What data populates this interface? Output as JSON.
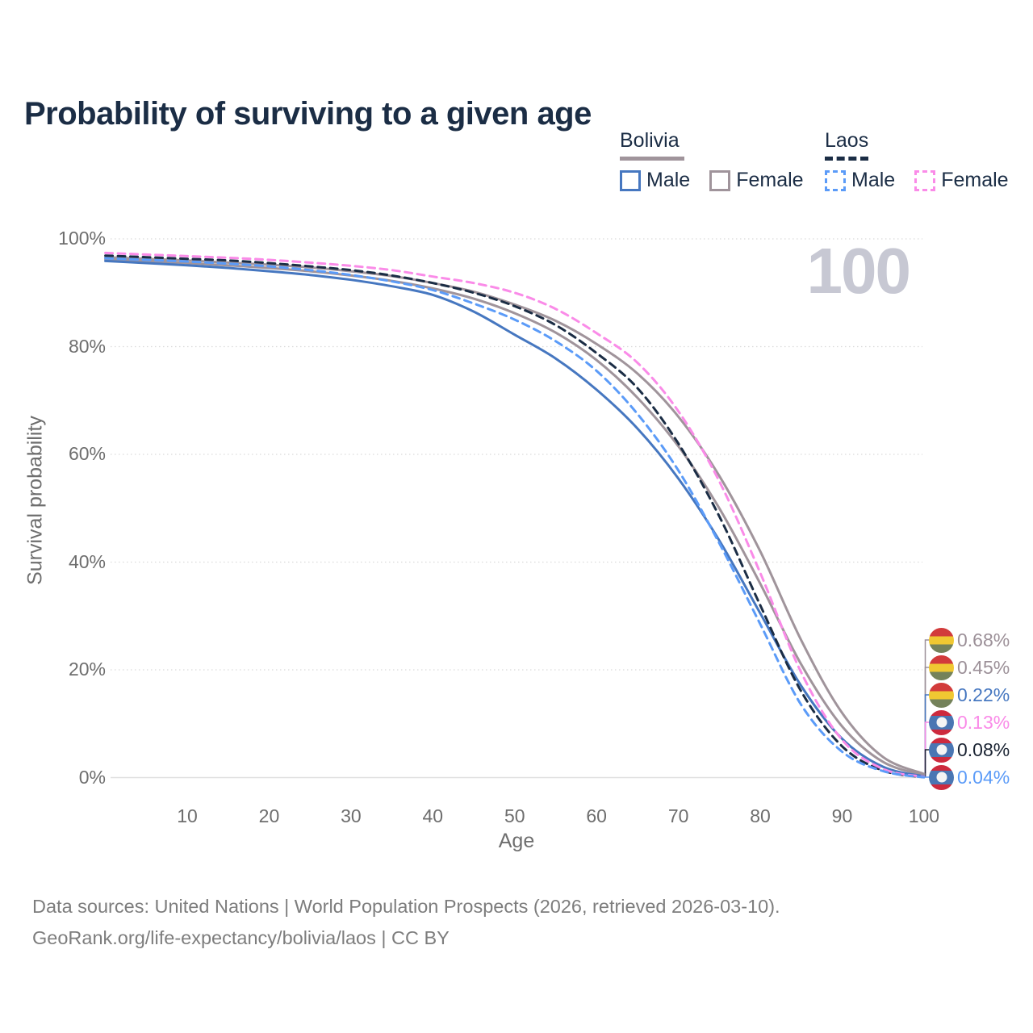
{
  "title": "Probability of surviving to a given age",
  "watermark_age": "100",
  "legend": {
    "groups": [
      {
        "name": "Bolivia",
        "rule_style": "solid",
        "rule_color": "#a0949b",
        "items": [
          {
            "label": "Male",
            "color": "#4677c0",
            "dashed": false
          },
          {
            "label": "Female",
            "color": "#a0949b",
            "dashed": false
          }
        ]
      },
      {
        "name": "Laos",
        "rule_style": "dashed",
        "rule_color": "#1b2d45",
        "items": [
          {
            "label": "Male",
            "color": "#5b9bf8",
            "dashed": true
          },
          {
            "label": "Female",
            "color": "#fa8be8",
            "dashed": true
          }
        ]
      }
    ]
  },
  "axes": {
    "y_title": "Survival probability",
    "x_title": "Age",
    "y_ticks": [
      {
        "label": "100%",
        "value": 100
      },
      {
        "label": "80%",
        "value": 80
      },
      {
        "label": "60%",
        "value": 60
      },
      {
        "label": "40%",
        "value": 40
      },
      {
        "label": "20%",
        "value": 20
      },
      {
        "label": "0%",
        "value": 0
      }
    ],
    "x_ticks": [
      {
        "label": "10",
        "value": 10
      },
      {
        "label": "20",
        "value": 20
      },
      {
        "label": "30",
        "value": 30
      },
      {
        "label": "40",
        "value": 40
      },
      {
        "label": "50",
        "value": 50
      },
      {
        "label": "60",
        "value": 60
      },
      {
        "label": "70",
        "value": 70
      },
      {
        "label": "80",
        "value": 80
      },
      {
        "label": "90",
        "value": 90
      },
      {
        "label": "100",
        "value": 100
      }
    ]
  },
  "end_labels": [
    {
      "text": "0.68%",
      "color": "#9c9098",
      "flag": "bolivia",
      "series": "bolivia_female"
    },
    {
      "text": "0.45%",
      "color": "#9c9098",
      "flag": "bolivia",
      "series": "bolivia_both"
    },
    {
      "text": "0.22%",
      "color": "#4677c0",
      "flag": "bolivia",
      "series": "bolivia_male"
    },
    {
      "text": "0.13%",
      "color": "#fa8be8",
      "flag": "laos",
      "series": "laos_female"
    },
    {
      "text": "0.08%",
      "color": "#1b2433",
      "flag": "laos",
      "series": "laos_both"
    },
    {
      "text": "0.04%",
      "color": "#5b9bf8",
      "flag": "laos",
      "series": "laos_male"
    }
  ],
  "footer": {
    "line1": "Data sources: United Nations | World Population Prospects (2026, retrieved 2026-03-10).",
    "line2": "GeoRank.org/life-expectancy/bolivia/laos | CC BY"
  },
  "colors": {
    "title": "#1b2d45",
    "axis_text": "#6e6e6e",
    "gridline": "#dadada",
    "watermark": "#c7c8d3",
    "bolivia_male": "#4677c0",
    "bolivia_female": "#a0949b",
    "bolivia_both": "#a0949b",
    "laos_male": "#5b9bf8",
    "laos_female": "#fa8be8",
    "laos_both": "#1b2d45"
  },
  "chart_data": {
    "type": "line",
    "title": "Probability of surviving to a given age",
    "xlabel": "Age",
    "ylabel": "Survival probability",
    "xlim": [
      0,
      100
    ],
    "ylim": [
      0,
      100
    ],
    "grid": "horizontal",
    "legend_position": "top-right",
    "x": [
      0,
      5,
      10,
      15,
      20,
      25,
      30,
      35,
      40,
      45,
      50,
      55,
      60,
      65,
      70,
      75,
      80,
      85,
      90,
      95,
      100
    ],
    "series": [
      {
        "key": "bolivia_both",
        "name": "Bolivia (both sexes)",
        "country": "Bolivia",
        "sex": "both",
        "color": "#a0949b",
        "dash": false,
        "end_label": "0.45%",
        "values": [
          96.2,
          95.9,
          95.5,
          95.1,
          94.6,
          94.0,
          93.2,
          92.2,
          90.8,
          88.9,
          86.2,
          82.6,
          77.5,
          70.5,
          61.5,
          50.0,
          36.0,
          21.0,
          9.5,
          2.9,
          0.45
        ]
      },
      {
        "key": "bolivia_female",
        "name": "Bolivia Female",
        "country": "Bolivia",
        "sex": "female",
        "color": "#a0949b",
        "dash": false,
        "end_label": "0.68%",
        "values": [
          96.6,
          96.3,
          96.0,
          95.6,
          95.2,
          94.7,
          94.0,
          93.1,
          91.8,
          90.2,
          87.8,
          84.8,
          80.5,
          75.0,
          67.0,
          56.0,
          42.0,
          25.5,
          12.0,
          3.8,
          0.68
        ]
      },
      {
        "key": "bolivia_male",
        "name": "Bolivia Male",
        "country": "Bolivia",
        "sex": "male",
        "color": "#4677c0",
        "dash": false,
        "end_label": "0.22%",
        "values": [
          95.9,
          95.5,
          95.1,
          94.6,
          94.0,
          93.3,
          92.4,
          91.2,
          89.6,
          86.5,
          82.2,
          77.8,
          72.0,
          64.8,
          55.5,
          44.0,
          30.5,
          17.0,
          7.2,
          2.0,
          0.22
        ]
      },
      {
        "key": "laos_both",
        "name": "Laos (both sexes)",
        "country": "Laos",
        "sex": "both",
        "color": "#1b2d45",
        "dash": true,
        "end_label": "0.08%",
        "values": [
          96.9,
          96.6,
          96.3,
          96.0,
          95.5,
          94.9,
          94.2,
          93.2,
          91.8,
          90.0,
          87.5,
          84.0,
          78.8,
          72.3,
          62.0,
          48.5,
          32.0,
          16.0,
          5.8,
          1.3,
          0.08
        ]
      },
      {
        "key": "laos_female",
        "name": "Laos Female",
        "country": "Laos",
        "sex": "female",
        "color": "#fa8be8",
        "dash": true,
        "end_label": "0.13%",
        "values": [
          97.4,
          97.1,
          96.8,
          96.5,
          96.1,
          95.6,
          95.0,
          94.2,
          93.0,
          91.8,
          90.0,
          87.0,
          82.5,
          77.0,
          68.0,
          55.0,
          38.0,
          19.5,
          7.0,
          1.6,
          0.13
        ]
      },
      {
        "key": "laos_male",
        "name": "Laos Male",
        "country": "Laos",
        "sex": "male",
        "color": "#5b9bf8",
        "dash": true,
        "end_label": "0.04%",
        "values": [
          96.4,
          96.1,
          95.8,
          95.4,
          94.9,
          94.2,
          93.3,
          92.1,
          90.5,
          88.0,
          85.0,
          81.0,
          75.5,
          67.5,
          57.0,
          43.5,
          28.5,
          13.5,
          4.8,
          1.2,
          0.04
        ]
      }
    ]
  }
}
